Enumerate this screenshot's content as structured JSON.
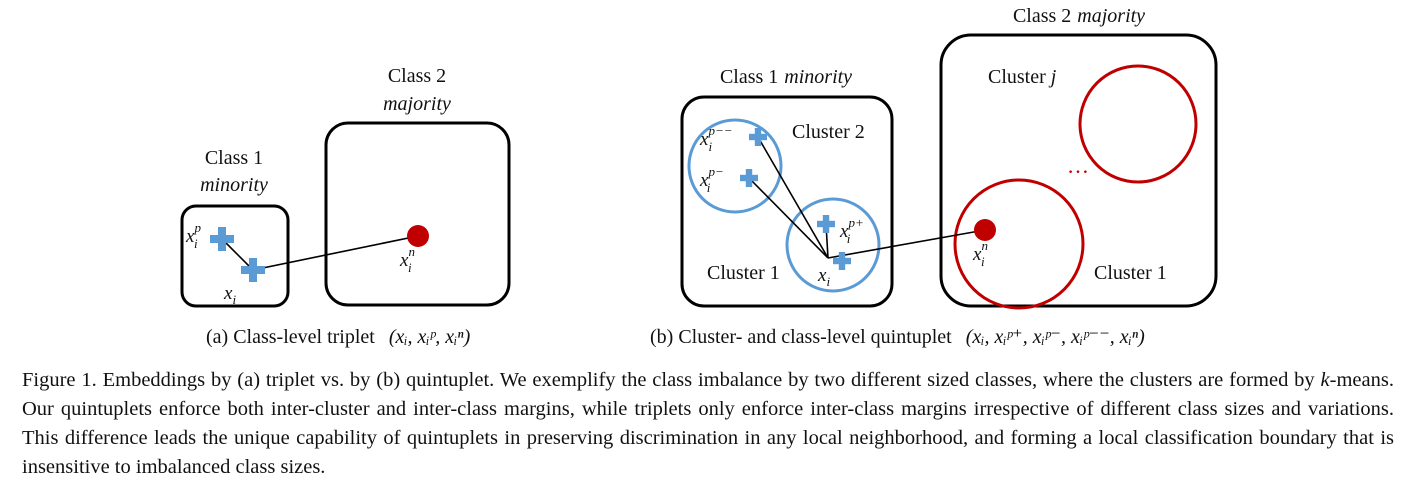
{
  "panel_a": {
    "class1_label": "Class 1",
    "class1_tag": "minority",
    "class2_label": "Class 2",
    "class2_tag": "majority",
    "points": {
      "xp": "x",
      "xp_sup": "p",
      "xp_sub": "i",
      "x": "x",
      "x_sub": "i",
      "xn": "x",
      "xn_sup": "n",
      "xn_sub": "i"
    },
    "subcaption": "(a) Class-level triplet",
    "subcaption_math": "(xᵢ, xᵢᵖ, xᵢⁿ)"
  },
  "panel_b": {
    "class1_label": "Class 1",
    "class1_tag": "minority",
    "class2_label": "Class 2",
    "class2_tag": "majority",
    "cluster_2": "Cluster 2",
    "cluster_1_left": "Cluster 1",
    "cluster_j_text": "Cluster",
    "cluster_j_var": "j",
    "cluster_1_right": "Cluster 1",
    "ellipsis": "…",
    "points": {
      "xpmm": "x",
      "xpmm_sup": "p−−",
      "xpmm_sub": "i",
      "xpm": "x",
      "xpm_sup": "p−",
      "xpm_sub": "i",
      "xpp": "x",
      "xpp_sup": "p+",
      "xpp_sub": "i",
      "x": "x",
      "x_sub": "i",
      "xn": "x",
      "xn_sup": "n",
      "xn_sub": "i"
    },
    "subcaption": "(b) Cluster- and class-level quintuplet",
    "subcaption_math": "(xᵢ, xᵢᵖ⁺, xᵢᵖ⁻, xᵢᵖ⁻⁻, xᵢⁿ)"
  },
  "caption": {
    "label": "Figure 1.",
    "text_1": " Embeddings by (a) triplet vs. by (b) quintuplet. We exemplify the class imbalance by two different sized classes, where the clusters are formed by ",
    "kmeans": "k",
    "text_2": "-means. Our quintuplets enforce both inter-cluster and inter-class margins, while triplets only enforce inter-class margins irrespective of different class sizes and variations. This difference leads the unique capability of quintuplets in preserving discrimination in any local neighborhood, and forming a local classification boundary that is insensitive to imbalanced class sizes."
  },
  "colors": {
    "positive": "#5b9bd5",
    "negative": "#c00000",
    "cluster_blue": "#5b9bd5",
    "cluster_red": "#c00000",
    "box": "#000000"
  }
}
